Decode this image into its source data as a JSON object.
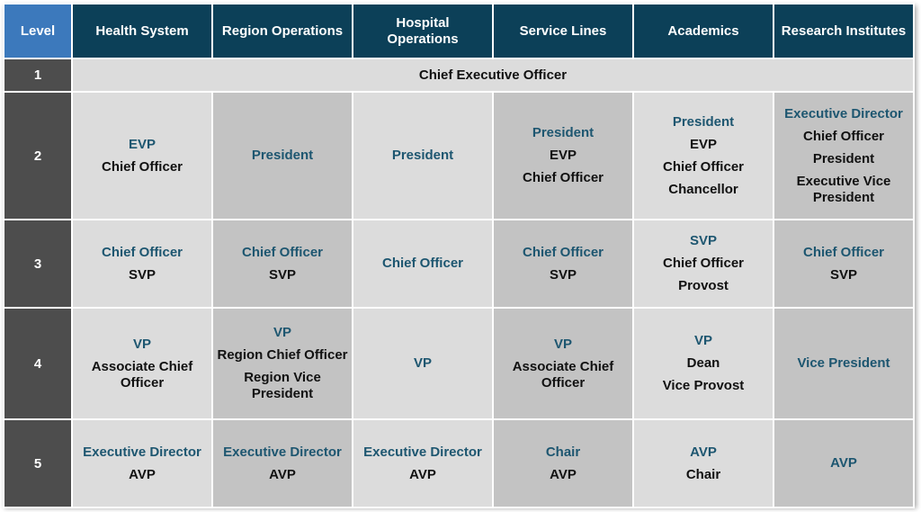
{
  "headers": {
    "level": "Level",
    "health_system": "Health System",
    "region_operations": "Region Operations",
    "hospital_operations": "Hospital Operations",
    "service_lines": "Service Lines",
    "academics": "Academics",
    "research_institutes": "Research Institutes"
  },
  "colors": {
    "header_bg": "#0c4058",
    "level_header_bg": "#3c79bc",
    "level_cell_bg": "#4d4d4d",
    "light_cell_bg": "#dcdcdc",
    "dark_cell_bg": "#c3c3c3",
    "accent_text": "#1d5670"
  },
  "levels": [
    "1",
    "2",
    "3",
    "4",
    "5"
  ],
  "level1": {
    "ceo": "Chief Executive Officer"
  },
  "level2": {
    "health_system": [
      "EVP",
      "Chief Officer"
    ],
    "region_operations": [
      "President"
    ],
    "hospital_operations": [
      "President"
    ],
    "service_lines": [
      "President",
      "EVP",
      "Chief Officer"
    ],
    "academics": [
      "President",
      "EVP",
      "Chief Officer",
      "Chancellor"
    ],
    "research_institutes": [
      "Executive Director",
      "Chief Officer",
      "President",
      "Executive Vice President"
    ]
  },
  "level3": {
    "health_system": [
      "Chief Officer",
      "SVP"
    ],
    "region_operations": [
      "Chief Officer",
      "SVP"
    ],
    "hospital_operations": [
      "Chief Officer"
    ],
    "service_lines": [
      "Chief Officer",
      "SVP"
    ],
    "academics": [
      "SVP",
      "Chief Officer",
      "Provost"
    ],
    "research_institutes": [
      "Chief Officer",
      "SVP"
    ]
  },
  "level4": {
    "health_system": [
      "VP",
      "Associate Chief Officer"
    ],
    "region_operations": [
      "VP",
      "Region Chief Officer",
      "Region Vice President"
    ],
    "hospital_operations": [
      "VP"
    ],
    "service_lines": [
      "VP",
      "Associate Chief Officer"
    ],
    "academics": [
      "VP",
      "Dean",
      "Vice Provost"
    ],
    "research_institutes": [
      "Vice President"
    ]
  },
  "level5": {
    "health_system": [
      "Executive Director",
      "AVP"
    ],
    "region_operations": [
      "Executive Director",
      "AVP"
    ],
    "hospital_operations": [
      "Executive Director",
      "AVP"
    ],
    "service_lines": [
      "Chair",
      "AVP"
    ],
    "academics": [
      "AVP",
      "Chair"
    ],
    "research_institutes": [
      "AVP"
    ]
  }
}
